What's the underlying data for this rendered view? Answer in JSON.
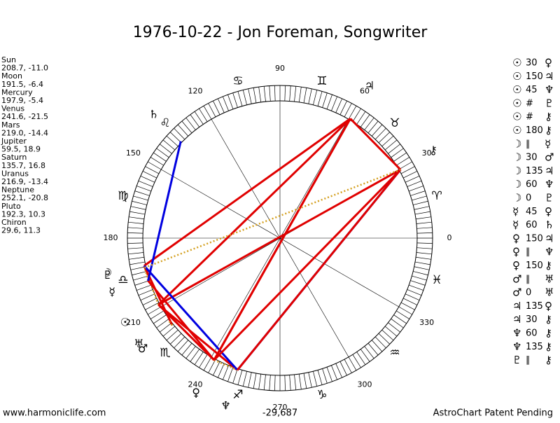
{
  "title": "1976-10-22 - Jon Foreman, Songwriter",
  "planets": [
    {
      "name": "Sun",
      "glyph": "☉",
      "coords": "208.7, -11.0",
      "longitude": 208.7
    },
    {
      "name": "Moon",
      "glyph": "☽",
      "coords": "191.5, -6.4",
      "longitude": 191.5
    },
    {
      "name": "Mercury",
      "glyph": "☿",
      "coords": "197.9, -5.4",
      "longitude": 197.9
    },
    {
      "name": "Venus",
      "glyph": "♀",
      "coords": "241.6, -21.5",
      "longitude": 241.6
    },
    {
      "name": "Mars",
      "glyph": "♂",
      "coords": "219.0, -14.4",
      "longitude": 219.0
    },
    {
      "name": "Jupiter",
      "glyph": "♃",
      "coords": "59.5, 18.9",
      "longitude": 59.5
    },
    {
      "name": "Saturn",
      "glyph": "♄",
      "coords": "135.7, 16.8",
      "longitude": 135.7
    },
    {
      "name": "Uranus",
      "glyph": "♅",
      "coords": "216.9, -13.4",
      "longitude": 216.9
    },
    {
      "name": "Neptune",
      "glyph": "♆",
      "coords": "252.1, -20.8",
      "longitude": 252.1
    },
    {
      "name": "Pluto",
      "glyph": "♇",
      "coords": "192.3, 10.3",
      "longitude": 192.3
    },
    {
      "name": "Chiron",
      "glyph": "⚷",
      "coords": "29.6, 11.3",
      "longitude": 29.6
    }
  ],
  "signs": [
    "♈",
    "♉",
    "♊",
    "♋",
    "♌",
    "♍",
    "♎",
    "♏",
    "♐",
    "♑",
    "♒",
    "♓"
  ],
  "degree_labels": [
    90,
    60,
    30,
    0,
    330,
    300,
    270,
    240,
    210,
    180,
    150,
    120
  ],
  "aspects": [
    {
      "a": "☉",
      "aspect": "30",
      "b": "♀"
    },
    {
      "a": "☉",
      "aspect": "150",
      "b": "♃"
    },
    {
      "a": "☉",
      "aspect": "45",
      "b": "♆"
    },
    {
      "a": "☉",
      "aspect": "#",
      "b": "♇"
    },
    {
      "a": "☉",
      "aspect": "#",
      "b": "⚷"
    },
    {
      "a": "☉",
      "aspect": "180",
      "b": "⚷"
    },
    {
      "a": "☽",
      "aspect": "∥",
      "b": "☿"
    },
    {
      "a": "☽",
      "aspect": "30",
      "b": "♂"
    },
    {
      "a": "☽",
      "aspect": "135",
      "b": "♃"
    },
    {
      "a": "☽",
      "aspect": "60",
      "b": "♆"
    },
    {
      "a": "☽",
      "aspect": "0",
      "b": "♇"
    },
    {
      "a": "☿",
      "aspect": "45",
      "b": "♀"
    },
    {
      "a": "☿",
      "aspect": "60",
      "b": "♄"
    },
    {
      "a": "♀",
      "aspect": "150",
      "b": "♃"
    },
    {
      "a": "♀",
      "aspect": "∥",
      "b": "♆"
    },
    {
      "a": "♀",
      "aspect": "150",
      "b": "⚷"
    },
    {
      "a": "♂",
      "aspect": "∥",
      "b": "♅"
    },
    {
      "a": "♂",
      "aspect": "0",
      "b": "♅"
    },
    {
      "a": "♃",
      "aspect": "135",
      "b": "♀"
    },
    {
      "a": "♃",
      "aspect": "30",
      "b": "⚷"
    },
    {
      "a": "♆",
      "aspect": "60",
      "b": "⚷"
    },
    {
      "a": "♆",
      "aspect": "135",
      "b": "⚷"
    },
    {
      "a": "♇",
      "aspect": "∥",
      "b": "⚷"
    }
  ],
  "aspect_colors": {
    "30": "#e00000",
    "45": "#e00000",
    "135": "#e00000",
    "150": "#e00000",
    "180": "#e00000",
    "60": "#0000e0",
    "#": "#d4a020",
    "∥": "#d4a020"
  },
  "center_label": "-29,687",
  "footer_left": "www.harmoniclife.com",
  "footer_right": "AstroChart Patent Pending"
}
